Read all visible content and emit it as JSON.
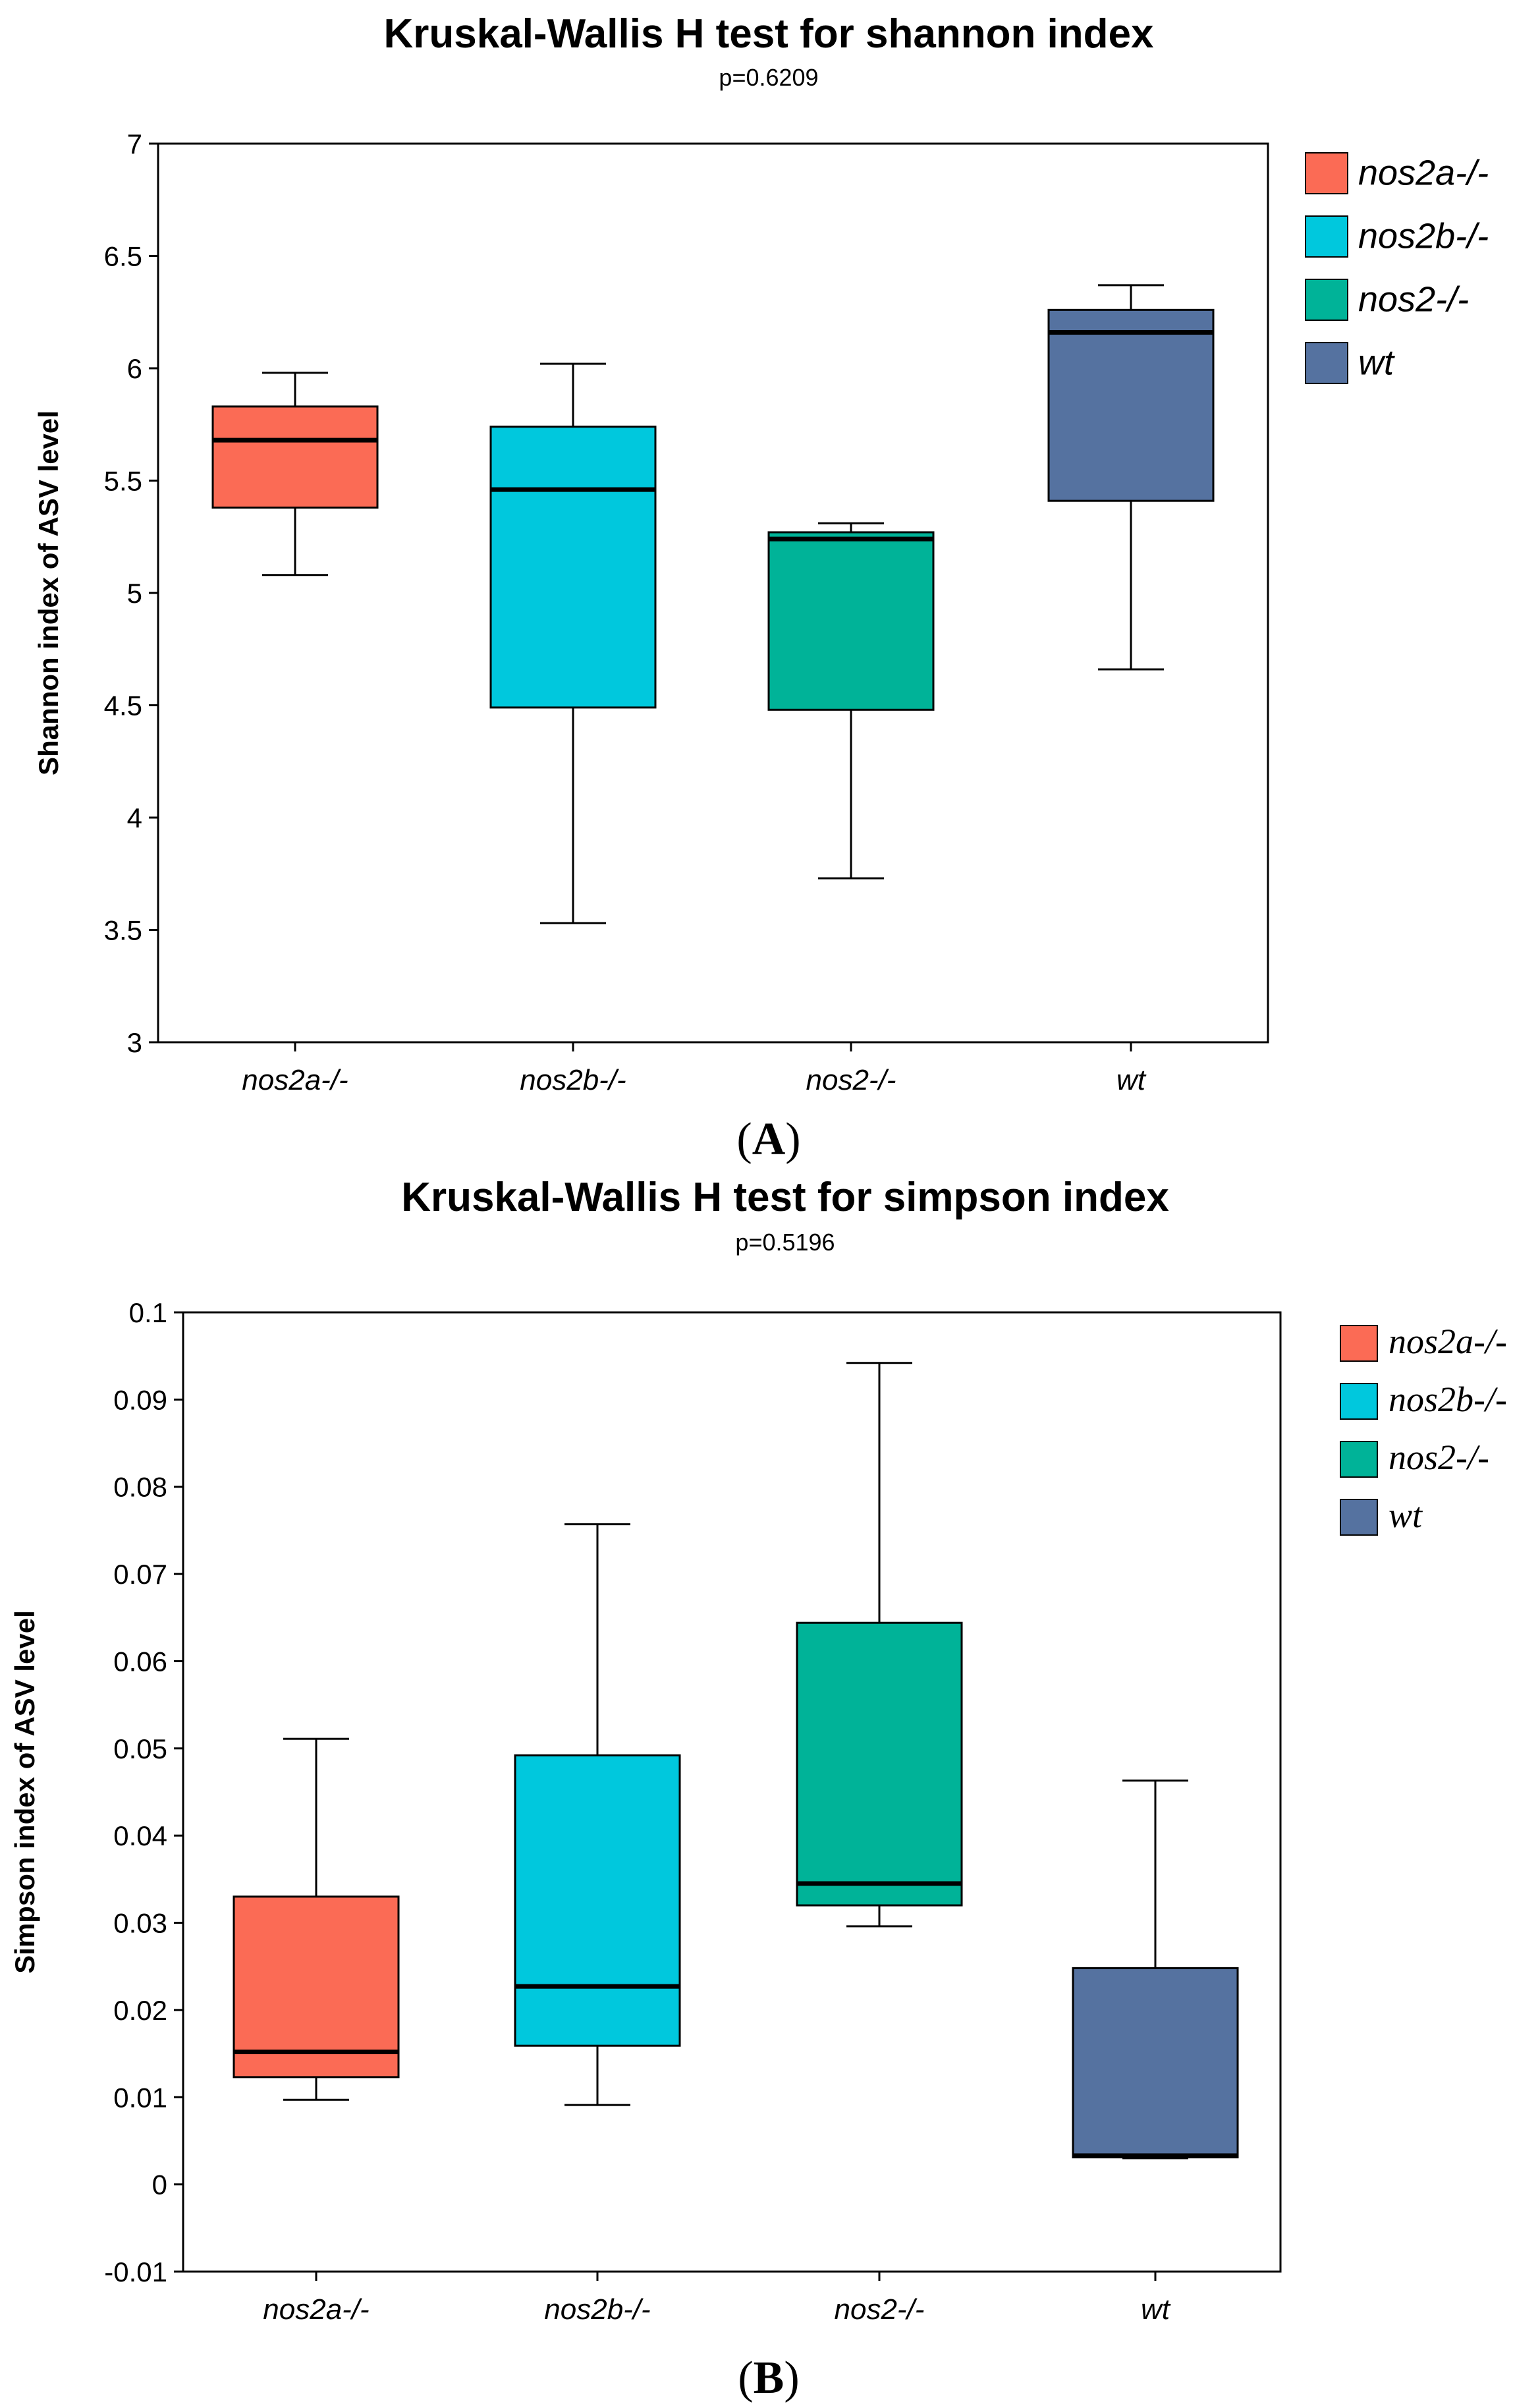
{
  "colors": {
    "nos2a": "#fb6b55",
    "nos2b": "#00c8dd",
    "nos2": "#00b398",
    "wt": "#5572a0"
  },
  "panels": [
    {
      "label_open": "(",
      "label_letter": "A",
      "label_close": ")"
    },
    {
      "label_open": "(",
      "label_letter": "B",
      "label_close": ")"
    }
  ],
  "chart_data": [
    {
      "type": "box",
      "title": "Kruskal-Wallis H test for shannon index",
      "subtitle": "p=0.6209",
      "xlabel": "",
      "ylabel": "Shannon index of ASV level",
      "ylim": [
        3,
        7
      ],
      "ticks": [
        "3",
        "3.5",
        "4",
        "4.5",
        "5",
        "5.5",
        "6",
        "6.5",
        "7"
      ],
      "categories": [
        "nos2a-/-",
        "nos2b-/-",
        "nos2-/-",
        "wt"
      ],
      "legend": [
        "nos2a-/-",
        "nos2b-/-",
        "nos2-/-",
        "wt"
      ],
      "legend_position": "right",
      "boxes": [
        {
          "name": "nos2a-/-",
          "whisker_low": 5.08,
          "q1": 5.38,
          "median": 5.68,
          "q3": 5.83,
          "whisker_high": 5.98,
          "color": "#fb6b55"
        },
        {
          "name": "nos2b-/-",
          "whisker_low": 3.53,
          "q1": 4.49,
          "median": 5.46,
          "q3": 5.74,
          "whisker_high": 6.02,
          "color": "#00c8dd"
        },
        {
          "name": "nos2-/-",
          "whisker_low": 3.73,
          "q1": 4.48,
          "median": 5.24,
          "q3": 5.27,
          "whisker_high": 5.31,
          "color": "#00b398"
        },
        {
          "name": "wt",
          "whisker_low": 4.66,
          "q1": 5.41,
          "median": 6.16,
          "q3": 6.26,
          "whisker_high": 6.37,
          "color": "#5572a0"
        }
      ]
    },
    {
      "type": "box",
      "title": "Kruskal-Wallis H test for simpson index",
      "subtitle": "p=0.5196",
      "xlabel": "",
      "ylabel": "Simpson index of ASV level",
      "ylim": [
        -0.01,
        0.1
      ],
      "ticks": [
        "-0.01",
        "0",
        "0.01",
        "0.02",
        "0.03",
        "0.04",
        "0.05",
        "0.06",
        "0.07",
        "0.08",
        "0.09",
        "0.1"
      ],
      "categories": [
        "nos2a-/-",
        "nos2b-/-",
        "nos2-/-",
        "wt"
      ],
      "legend": [
        "nos2a-/-",
        "nos2b-/-",
        "nos2-/-",
        "wt"
      ],
      "legend_position": "right",
      "boxes": [
        {
          "name": "nos2a-/-",
          "whisker_low": 0.0097,
          "q1": 0.0123,
          "median": 0.0152,
          "q3": 0.033,
          "whisker_high": 0.0511,
          "color": "#fb6b55"
        },
        {
          "name": "nos2b-/-",
          "whisker_low": 0.0091,
          "q1": 0.0159,
          "median": 0.0227,
          "q3": 0.0492,
          "whisker_high": 0.0757,
          "color": "#00c8dd"
        },
        {
          "name": "nos2-/-",
          "whisker_low": 0.0296,
          "q1": 0.032,
          "median": 0.0345,
          "q3": 0.0644,
          "whisker_high": 0.0942,
          "color": "#00b398"
        },
        {
          "name": "wt",
          "whisker_low": 0.003,
          "q1": 0.0031,
          "median": 0.0033,
          "q3": 0.0248,
          "whisker_high": 0.0463,
          "color": "#5572a0"
        }
      ]
    }
  ]
}
